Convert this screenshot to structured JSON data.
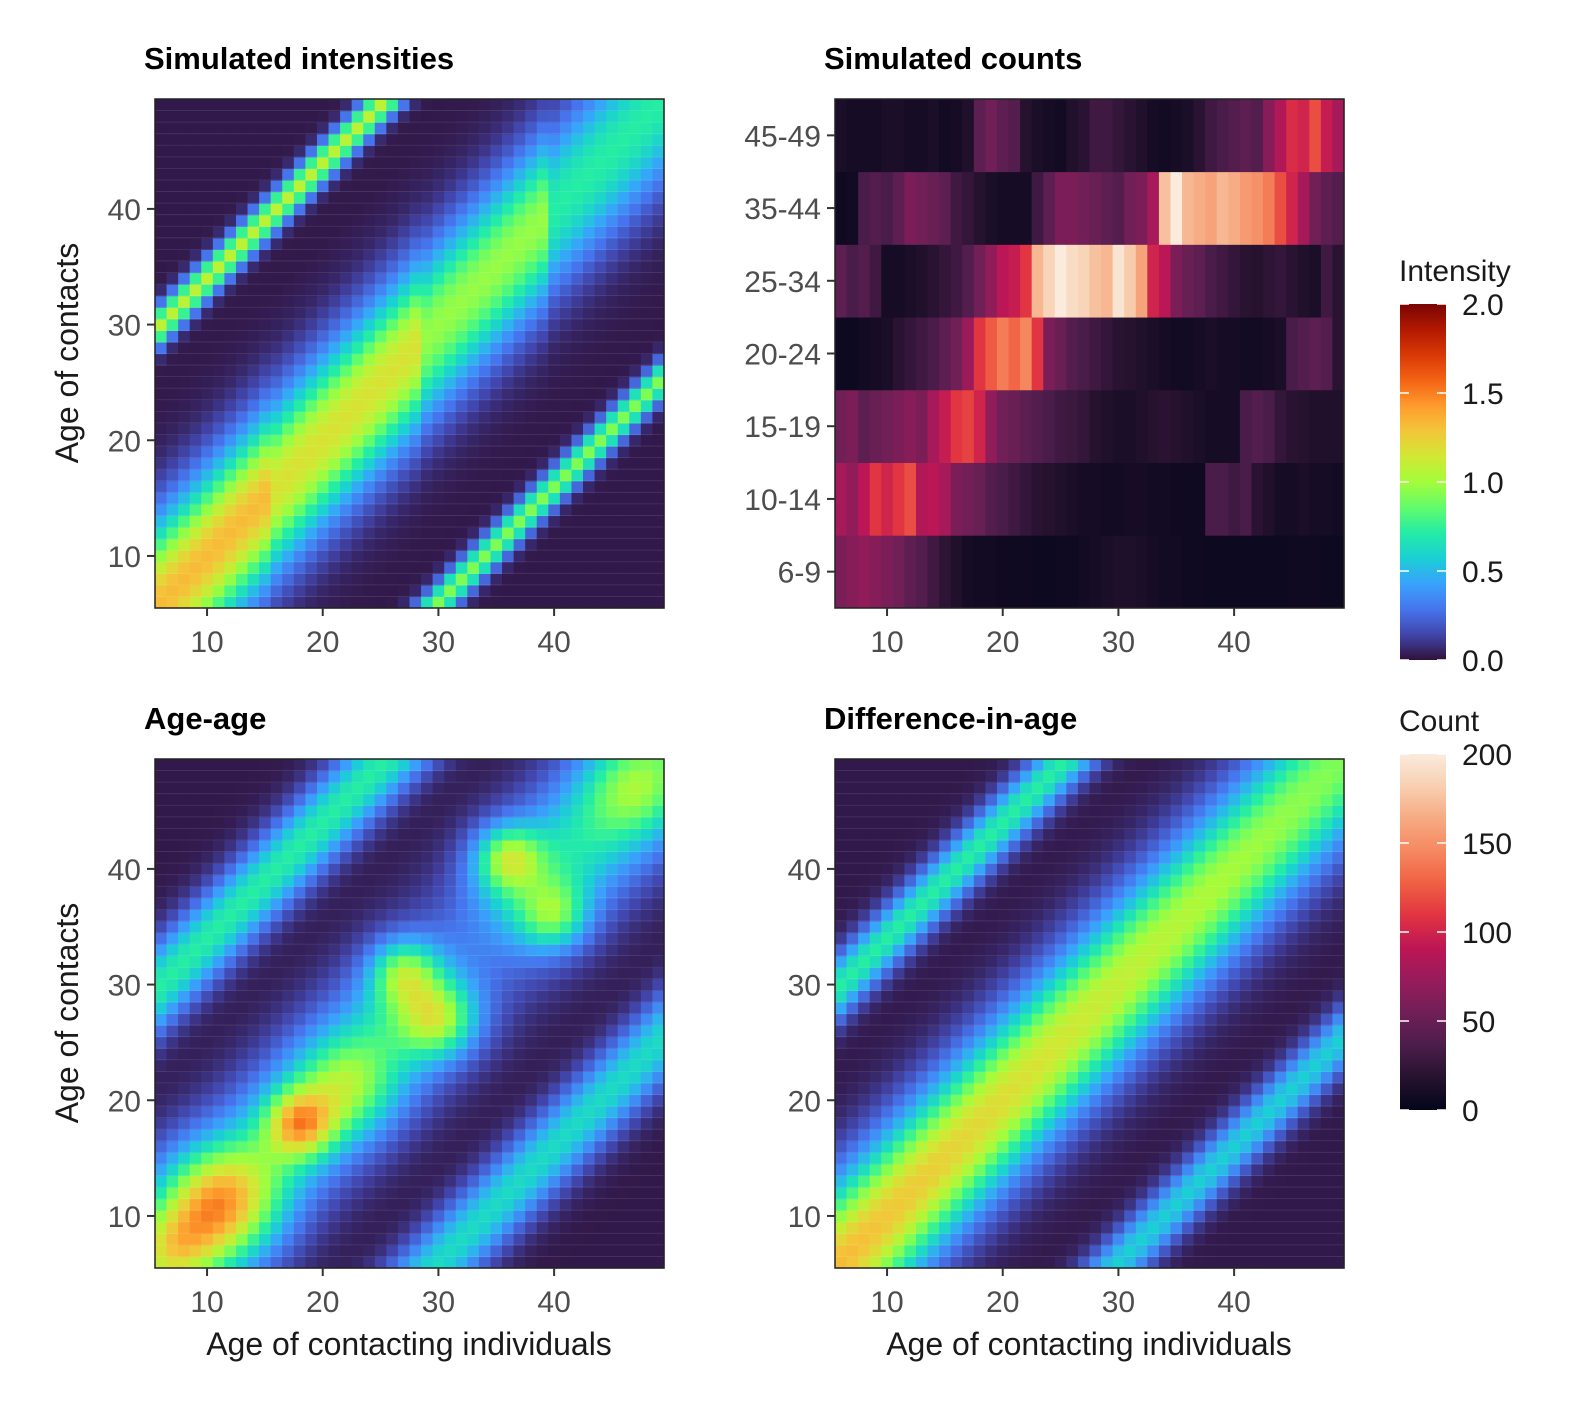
{
  "figure": {
    "panels": [
      {
        "id": "intensities",
        "title": "Simulated intensities"
      },
      {
        "id": "counts",
        "title": "Simulated counts"
      },
      {
        "id": "ageage",
        "title": "Age-age"
      },
      {
        "id": "diffage",
        "title": "Difference-in-age"
      }
    ],
    "xlabel": "Age of contacting individuals",
    "ylabel": "Age of contacts",
    "age_ticks": [
      "10",
      "20",
      "30",
      "40"
    ],
    "group_ticks": [
      "6-9",
      "10-14",
      "15-19",
      "20-24",
      "25-34",
      "35-44",
      "45-49"
    ]
  },
  "legends": {
    "intensity": {
      "title": "Intensity",
      "ticks": [
        "0.0",
        "0.5",
        "1.0",
        "1.5",
        "2.0"
      ],
      "range": [
        0,
        2
      ]
    },
    "count": {
      "title": "Count",
      "ticks": [
        "0",
        "50",
        "100",
        "150",
        "200"
      ],
      "range": [
        0,
        200
      ]
    }
  },
  "colors": {
    "turbo": [
      "#30123b",
      "#4145ab",
      "#4675ed",
      "#39a2fc",
      "#1bcfd4",
      "#24eca6",
      "#61fc6c",
      "#a4fc3b",
      "#d1e834",
      "#f3c63a",
      "#fe9b2d",
      "#f36315",
      "#d93806",
      "#b11901",
      "#7a0403"
    ],
    "rocket": [
      "#03051a",
      "#26122f",
      "#4c1d4b",
      "#701f57",
      "#961c5b",
      "#bd1655",
      "#e13342",
      "#f06043",
      "#f58860",
      "#f6aa82",
      "#f8cfb0",
      "#faebdd"
    ]
  },
  "chart_data": [
    {
      "id": "intensities",
      "type": "heatmap",
      "title": "Simulated intensities",
      "xlabel": "",
      "ylabel": "Age of contacts",
      "xlim": [
        5.5,
        49.5
      ],
      "ylim": [
        5.5,
        49.5
      ],
      "x_ticks": [
        10,
        20,
        30,
        40
      ],
      "y_ticks": [
        10,
        20,
        30,
        40
      ],
      "colorscale": "turbo",
      "value_range": [
        0,
        2
      ],
      "components": [
        {
          "kind": "main-diagonal",
          "age_offset": 0,
          "width_sd": 5.0,
          "peak_by_block": [
            {
              "from": 6,
              "to": 15,
              "peak": 1.3
            },
            {
              "from": 16,
              "to": 28,
              "peak": 1.15
            },
            {
              "from": 29,
              "to": 39,
              "peak": 0.95
            },
            {
              "from": 40,
              "to": 49,
              "peak": 0.7
            }
          ]
        },
        {
          "kind": "off-diagonal",
          "age_offset": 24,
          "width_sd": 1.2,
          "peak": 1.05
        },
        {
          "kind": "off-diagonal",
          "age_offset": -24,
          "width_sd": 1.2,
          "peak": 0.9
        }
      ]
    },
    {
      "id": "counts",
      "type": "heatmap",
      "title": "Simulated counts",
      "xlabel": "",
      "ylabel": "",
      "xlim": [
        5.5,
        49.5
      ],
      "x_ticks": [
        10,
        20,
        30,
        40
      ],
      "y_categories": [
        "6-9",
        "10-14",
        "15-19",
        "20-24",
        "25-34",
        "35-44",
        "45-49"
      ],
      "colorscale": "rocket",
      "value_range": [
        0,
        200
      ],
      "rows": [
        {
          "group": "6-9",
          "values": [
            60,
            65,
            70,
            65,
            60,
            55,
            45,
            40,
            30,
            22,
            15,
            10,
            8,
            8,
            6,
            6,
            6,
            5,
            5,
            6,
            6,
            8,
            10,
            12,
            14,
            14,
            12,
            10,
            8,
            8,
            6,
            6,
            5,
            5,
            5,
            5,
            5,
            5,
            5,
            6,
            6,
            6,
            5,
            5
          ]
        },
        {
          "group": "10-14",
          "values": [
            80,
            70,
            90,
            110,
            100,
            110,
            120,
            85,
            90,
            80,
            60,
            55,
            50,
            40,
            35,
            30,
            25,
            20,
            18,
            15,
            12,
            10,
            10,
            8,
            8,
            10,
            10,
            8,
            8,
            6,
            6,
            6,
            35,
            35,
            30,
            35,
            20,
            15,
            10,
            10,
            12,
            10,
            10,
            8
          ]
        },
        {
          "group": "15-19",
          "values": [
            55,
            60,
            45,
            50,
            55,
            60,
            65,
            60,
            80,
            95,
            110,
            115,
            100,
            70,
            55,
            50,
            45,
            40,
            35,
            30,
            28,
            25,
            18,
            15,
            12,
            12,
            15,
            18,
            20,
            18,
            15,
            12,
            10,
            10,
            10,
            35,
            40,
            35,
            25,
            20,
            18,
            15,
            15,
            15
          ]
        },
        {
          "group": "20-24",
          "values": [
            5,
            5,
            8,
            10,
            12,
            20,
            25,
            30,
            35,
            45,
            55,
            75,
            110,
            125,
            140,
            130,
            145,
            110,
            60,
            50,
            40,
            35,
            30,
            25,
            20,
            18,
            15,
            12,
            10,
            8,
            8,
            10,
            12,
            10,
            10,
            8,
            8,
            10,
            12,
            35,
            40,
            45,
            40,
            20
          ]
        },
        {
          "group": "25-34",
          "values": [
            45,
            35,
            40,
            30,
            10,
            10,
            12,
            15,
            20,
            25,
            30,
            40,
            55,
            70,
            90,
            95,
            110,
            170,
            185,
            200,
            190,
            185,
            175,
            170,
            195,
            180,
            160,
            100,
            90,
            60,
            50,
            45,
            35,
            30,
            25,
            20,
            18,
            22,
            25,
            20,
            15,
            12,
            30,
            20
          ]
        },
        {
          "group": "35-44",
          "values": [
            6,
            8,
            35,
            40,
            35,
            45,
            60,
            55,
            50,
            45,
            30,
            25,
            18,
            12,
            10,
            10,
            10,
            30,
            45,
            60,
            60,
            55,
            50,
            45,
            40,
            55,
            60,
            80,
            175,
            200,
            170,
            165,
            160,
            170,
            165,
            155,
            150,
            140,
            120,
            100,
            80,
            55,
            45,
            40
          ]
        },
        {
          "group": "45-49",
          "values": [
            12,
            10,
            10,
            10,
            12,
            12,
            10,
            10,
            12,
            8,
            10,
            15,
            45,
            55,
            45,
            40,
            18,
            12,
            10,
            8,
            15,
            20,
            30,
            30,
            25,
            20,
            15,
            10,
            8,
            10,
            12,
            20,
            30,
            35,
            40,
            45,
            40,
            65,
            85,
            105,
            100,
            120,
            95,
            80
          ]
        }
      ]
    },
    {
      "id": "ageage",
      "type": "heatmap",
      "title": "Age-age",
      "xlabel": "Age of contacting individuals",
      "ylabel": "Age of contacts",
      "xlim": [
        5.5,
        49.5
      ],
      "ylim": [
        5.5,
        49.5
      ],
      "x_ticks": [
        10,
        20,
        30,
        40
      ],
      "y_ticks": [
        10,
        20,
        30,
        40
      ],
      "colorscale": "turbo",
      "value_range": [
        0,
        2
      ],
      "components": [
        {
          "kind": "main-diagonal",
          "age_offset": 0,
          "width_sd": 5.5,
          "peak": 0.65
        },
        {
          "kind": "off-diagonal",
          "age_offset": 24,
          "width_sd": 2.8,
          "peak": 0.7
        },
        {
          "kind": "off-diagonal",
          "age_offset": -24,
          "width_sd": 2.8,
          "peak": 0.6
        },
        {
          "kind": "blob",
          "x": 11,
          "y": 11,
          "sd": 3.5,
          "peak": 0.8
        },
        {
          "kind": "blob",
          "x": 7,
          "y": 7,
          "sd": 2.5,
          "peak": 0.4
        },
        {
          "kind": "blob",
          "x": 18,
          "y": 18,
          "sd": 2.0,
          "peak": 0.75
        },
        {
          "kind": "blob",
          "x": 22,
          "y": 21,
          "sd": 3.0,
          "peak": 0.4
        },
        {
          "kind": "blob",
          "x": 27,
          "y": 31,
          "sd": 2.0,
          "peak": 0.6
        },
        {
          "kind": "blob",
          "x": 30,
          "y": 27,
          "sd": 2.2,
          "peak": 0.6
        },
        {
          "kind": "blob",
          "x": 36,
          "y": 41,
          "sd": 2.0,
          "peak": 0.7
        },
        {
          "kind": "blob",
          "x": 40,
          "y": 36,
          "sd": 2.0,
          "peak": 0.5
        },
        {
          "kind": "blob",
          "x": 47,
          "y": 47,
          "sd": 3.0,
          "peak": 0.35
        },
        {
          "kind": "blob",
          "x": 33,
          "y": 33,
          "sd": 3.5,
          "peak": -0.35
        }
      ]
    },
    {
      "id": "diffage",
      "type": "heatmap",
      "title": "Difference-in-age",
      "xlabel": "Age of contacting individuals",
      "ylabel": "",
      "xlim": [
        5.5,
        49.5
      ],
      "ylim": [
        5.5,
        49.5
      ],
      "x_ticks": [
        10,
        20,
        30,
        40
      ],
      "y_ticks": [
        10,
        20,
        30,
        40
      ],
      "colorscale": "turbo",
      "value_range": [
        0,
        2
      ],
      "components": [
        {
          "kind": "main-diagonal",
          "age_offset": 0,
          "width_sd": 5.0,
          "peak_from": 1.3,
          "peak_to": 0.9
        },
        {
          "kind": "off-diagonal",
          "age_offset": 24,
          "width_sd": 2.0,
          "peak": 0.7
        },
        {
          "kind": "off-diagonal",
          "age_offset": -24,
          "width_sd": 2.0,
          "peak": 0.55
        }
      ]
    }
  ]
}
